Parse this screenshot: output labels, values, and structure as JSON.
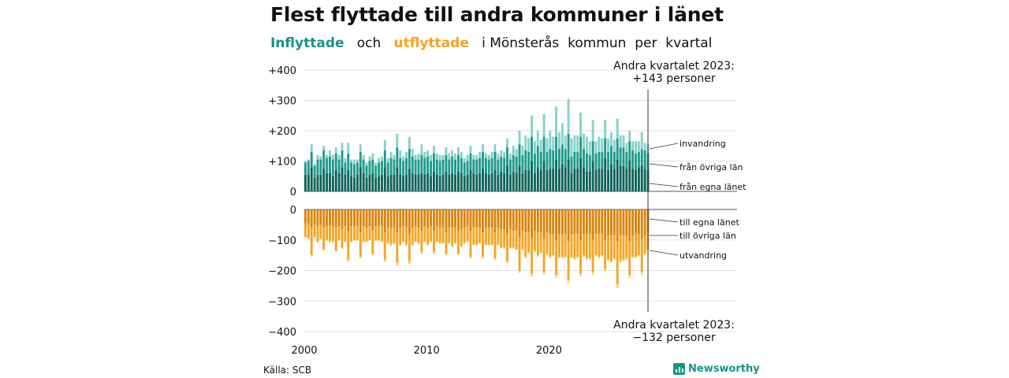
{
  "title": "Flest flyttade till andra kommuner i länet",
  "subtitle": {
    "in_word": "Inflyttade",
    "and_word": "och",
    "out_word": "utflyttade",
    "rest": "i Mönsterås  kommun  per  kvartal"
  },
  "source": "Källa: SCB",
  "brand": "Newsworthy",
  "colors": {
    "in_own": "#0c6256",
    "in_other": "#1d9a8a",
    "in_immig": "#86d2c8",
    "out_own": "#d9840e",
    "out_other": "#f4a524",
    "out_emig": "#fbd48f"
  },
  "chart_data": {
    "type": "bar",
    "stacked": true,
    "x_start": 2000,
    "quarters_per_year": 4,
    "x_ticks": [
      "2000",
      "2010",
      "2020"
    ],
    "y_ticks_top": [
      "+400",
      "+300",
      "+200",
      "+100",
      "0"
    ],
    "y_ticks_bottom": [
      "0",
      "−100",
      "−200",
      "−300",
      "−400"
    ],
    "ylim_top": [
      0,
      400
    ],
    "ylim_bottom": [
      -400,
      0
    ],
    "grid": true,
    "series_labels": {
      "in_immig": "invandring",
      "in_other": "från övriga län",
      "in_own": "från egna länet",
      "out_own": "till egna länet",
      "out_other": "till övriga län",
      "out_emig": "utvandring"
    },
    "inflow": {
      "own": [
        55,
        55,
        80,
        45,
        55,
        55,
        75,
        60,
        60,
        50,
        70,
        60,
        80,
        55,
        70,
        50,
        45,
        55,
        80,
        60,
        45,
        55,
        60,
        45,
        50,
        55,
        80,
        50,
        55,
        55,
        80,
        55,
        50,
        55,
        75,
        60,
        55,
        55,
        60,
        55,
        60,
        50,
        65,
        55,
        50,
        55,
        65,
        55,
        60,
        55,
        65,
        60,
        50,
        55,
        70,
        60,
        55,
        60,
        75,
        60,
        55,
        60,
        70,
        55,
        65,
        60,
        85,
        55,
        65,
        60,
        85,
        60,
        70,
        70,
        100,
        60,
        80,
        70,
        100,
        70,
        75,
        75,
        105,
        75,
        90,
        80,
        105,
        60,
        75,
        75,
        110,
        80,
        65,
        65,
        100,
        70,
        75,
        75,
        110,
        70,
        90,
        75,
        105,
        85,
        85,
        75,
        100,
        75,
        70,
        80,
        85,
        75,
        70
      ],
      "other": [
        40,
        45,
        50,
        40,
        50,
        50,
        60,
        50,
        55,
        55,
        55,
        45,
        55,
        40,
        55,
        45,
        45,
        40,
        50,
        45,
        40,
        45,
        45,
        40,
        45,
        45,
        55,
        45,
        55,
        50,
        65,
        55,
        50,
        55,
        65,
        55,
        50,
        50,
        60,
        55,
        55,
        50,
        60,
        50,
        50,
        50,
        55,
        50,
        55,
        50,
        55,
        50,
        45,
        45,
        55,
        45,
        50,
        50,
        55,
        50,
        50,
        50,
        60,
        50,
        50,
        50,
        60,
        50,
        55,
        55,
        70,
        60,
        65,
        60,
        80,
        65,
        70,
        60,
        80,
        60,
        65,
        60,
        75,
        65,
        65,
        60,
        85,
        55,
        55,
        55,
        70,
        60,
        60,
        55,
        65,
        55,
        55,
        55,
        65,
        60,
        60,
        55,
        70,
        60,
        60,
        55,
        65,
        60,
        55,
        50,
        55,
        60,
        55
      ],
      "immig": [
        5,
        5,
        25,
        5,
        15,
        10,
        15,
        10,
        20,
        15,
        20,
        15,
        25,
        15,
        35,
        10,
        15,
        10,
        25,
        15,
        10,
        15,
        20,
        10,
        15,
        15,
        35,
        15,
        20,
        15,
        45,
        25,
        15,
        20,
        40,
        25,
        15,
        20,
        35,
        20,
        20,
        20,
        25,
        20,
        20,
        15,
        25,
        20,
        20,
        20,
        25,
        20,
        15,
        20,
        25,
        15,
        15,
        20,
        25,
        15,
        15,
        20,
        25,
        20,
        20,
        20,
        30,
        20,
        30,
        25,
        45,
        30,
        50,
        45,
        70,
        40,
        50,
        40,
        75,
        45,
        60,
        45,
        100,
        55,
        70,
        45,
        115,
        60,
        55,
        55,
        80,
        50,
        55,
        45,
        70,
        40,
        50,
        45,
        60,
        45,
        45,
        40,
        65,
        40,
        40,
        30,
        35,
        30,
        40,
        35,
        55,
        25,
        30
      ]
    },
    "outflow": {
      "own": [
        45,
        50,
        60,
        50,
        55,
        50,
        60,
        55,
        55,
        55,
        60,
        55,
        65,
        55,
        70,
        55,
        55,
        55,
        75,
        55,
        60,
        55,
        70,
        55,
        55,
        55,
        75,
        60,
        60,
        60,
        75,
        60,
        55,
        60,
        80,
        60,
        55,
        60,
        70,
        55,
        60,
        55,
        70,
        55,
        60,
        60,
        75,
        60,
        60,
        60,
        70,
        65,
        60,
        55,
        70,
        60,
        60,
        60,
        75,
        60,
        60,
        60,
        75,
        60,
        65,
        65,
        80,
        65,
        70,
        70,
        90,
        70,
        75,
        75,
        95,
        70,
        75,
        75,
        95,
        75,
        80,
        80,
        100,
        80,
        80,
        80,
        105,
        80,
        80,
        80,
        100,
        80,
        80,
        80,
        100,
        80,
        80,
        80,
        100,
        85,
        85,
        85,
        105,
        85,
        85,
        85,
        105,
        85,
        80,
        80,
        95,
        85,
        75
      ],
      "other": [
        45,
        45,
        90,
        40,
        50,
        45,
        70,
        45,
        50,
        50,
        75,
        45,
        60,
        50,
        95,
        50,
        45,
        45,
        80,
        50,
        45,
        45,
        75,
        45,
        45,
        50,
        90,
        50,
        55,
        50,
        100,
        55,
        50,
        55,
        90,
        55,
        50,
        50,
        70,
        50,
        55,
        50,
        70,
        50,
        50,
        50,
        70,
        50,
        60,
        50,
        75,
        55,
        50,
        50,
        85,
        55,
        55,
        50,
        80,
        55,
        55,
        55,
        85,
        55,
        60,
        60,
        90,
        60,
        55,
        60,
        110,
        60,
        80,
        65,
        115,
        65,
        75,
        65,
        110,
        70,
        75,
        70,
        115,
        75,
        75,
        75,
        125,
        75,
        80,
        75,
        110,
        70,
        80,
        80,
        105,
        70,
        75,
        70,
        95,
        80,
        85,
        75,
        140,
        85,
        80,
        75,
        110,
        70,
        75,
        70,
        110,
        60,
        55
      ],
      "emig": [
        3,
        3,
        5,
        3,
        4,
        3,
        5,
        3,
        4,
        3,
        5,
        3,
        4,
        3,
        6,
        4,
        3,
        3,
        6,
        3,
        3,
        3,
        6,
        3,
        3,
        3,
        7,
        3,
        4,
        3,
        8,
        4,
        3,
        4,
        9,
        4,
        3,
        3,
        6,
        3,
        3,
        3,
        6,
        3,
        3,
        3,
        5,
        3,
        3,
        3,
        5,
        3,
        3,
        3,
        6,
        3,
        3,
        3,
        6,
        3,
        3,
        3,
        6,
        3,
        3,
        3,
        6,
        3,
        3,
        3,
        8,
        4,
        4,
        4,
        10,
        5,
        5,
        5,
        9,
        5,
        4,
        4,
        10,
        5,
        5,
        5,
        12,
        5,
        5,
        5,
        10,
        5,
        5,
        5,
        10,
        5,
        5,
        5,
        9,
        5,
        5,
        5,
        12,
        5,
        5,
        5,
        10,
        5,
        5,
        5,
        9,
        5,
        5
      ]
    },
    "annotation_top": [
      "Andra kvartalet 2023:",
      "+143 personer"
    ],
    "annotation_bottom": [
      "Andra kvartalet 2023:",
      "−132 personer"
    ]
  }
}
